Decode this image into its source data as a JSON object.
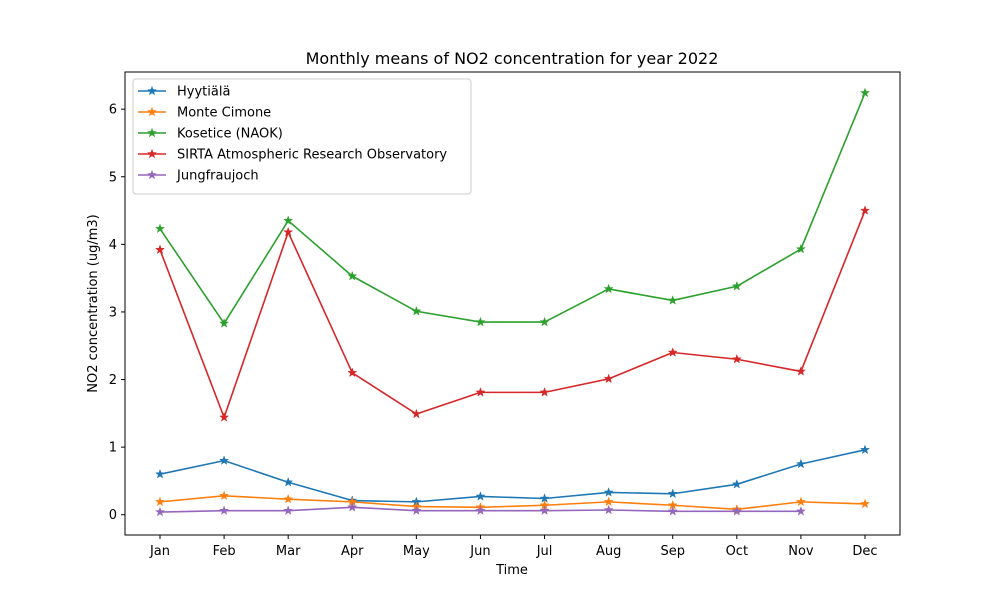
{
  "chart_data": {
    "type": "line",
    "title": "Monthly means of NO2 concentration for year 2022",
    "xlabel": "Time",
    "ylabel": "NO2 concentration (ug/m3)",
    "categories": [
      "Jan",
      "Feb",
      "Mar",
      "Apr",
      "May",
      "Jun",
      "Jul",
      "Aug",
      "Sep",
      "Oct",
      "Nov",
      "Dec"
    ],
    "ylim": [
      -0.3,
      6.55
    ],
    "yticks": [
      0,
      1,
      2,
      3,
      4,
      5,
      6
    ],
    "grid": false,
    "legend_position": "top-left",
    "marker": "star",
    "series": [
      {
        "name": "Hyytiälä",
        "color": "#1f77b4",
        "values": [
          0.6,
          0.8,
          0.48,
          0.21,
          0.19,
          0.27,
          0.24,
          0.33,
          0.31,
          0.45,
          0.75,
          0.96
        ]
      },
      {
        "name": "Monte Cimone",
        "color": "#ff7f0e",
        "values": [
          0.19,
          0.28,
          0.23,
          0.19,
          0.12,
          0.11,
          0.14,
          0.19,
          0.14,
          0.08,
          0.19,
          0.16
        ]
      },
      {
        "name": "Kosetice (NAOK)",
        "color": "#2ca02c",
        "values": [
          4.23,
          2.83,
          4.35,
          3.53,
          3.01,
          2.85,
          2.85,
          3.34,
          3.17,
          3.38,
          3.93,
          6.24
        ]
      },
      {
        "name": "SIRTA Atmospheric Research Observatory",
        "color": "#d62728",
        "values": [
          3.92,
          1.44,
          4.18,
          2.1,
          1.49,
          1.81,
          1.81,
          2.01,
          2.4,
          2.3,
          2.12,
          4.5
        ]
      },
      {
        "name": "Jungfraujoch",
        "color": "#9467bd",
        "values": [
          0.04,
          0.06,
          0.06,
          0.11,
          0.06,
          0.06,
          0.06,
          0.07,
          0.05,
          0.05,
          0.05,
          null
        ]
      }
    ]
  }
}
